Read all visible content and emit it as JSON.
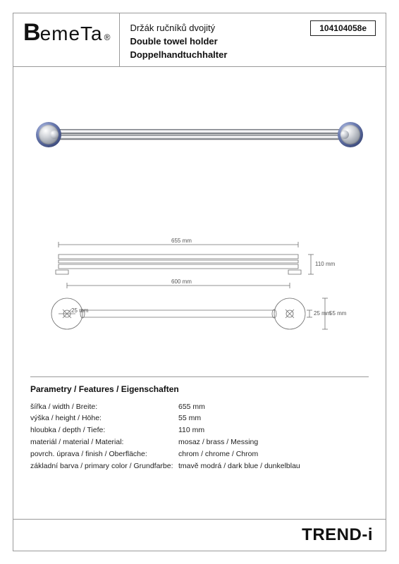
{
  "header": {
    "logo_b": "B",
    "logo_rest": "emeTa",
    "logo_reg": "®",
    "title_cs": "Držák ručníků dvojitý",
    "title_en": "Double towel holder",
    "title_de": "Doppelhandtuchhalter",
    "sku": "104104058e"
  },
  "render": {
    "accent_color": "#5d6da8",
    "chrome_light": "#f3f4f6",
    "chrome_dark": "#6a7079"
  },
  "drawing": {
    "dim_total_width": "655 mm",
    "dim_inner_width": "600 mm",
    "dim_height_side": "110 mm",
    "dim_mount_inner": "25 mm",
    "dim_mount_diameter": "55 mm",
    "dim_bar_gap": "25 mm",
    "stroke_color": "#6f6f6f",
    "stroke_width": 0.8
  },
  "features": {
    "heading": "Parametry / Features / Eigenschaften",
    "rows": [
      {
        "label": "šířka / width / Breite:",
        "value": "655 mm"
      },
      {
        "label": "výška / height / Höhe:",
        "value": "55 mm"
      },
      {
        "label": "hloubka / depth / Tiefe:",
        "value": "110 mm"
      },
      {
        "label": "materiál / material / Material:",
        "value": "mosaz / brass / Messing"
      },
      {
        "label": "povrch. úprava / finish / Oberfläche:",
        "value": "chrom / chrome / Chrom"
      },
      {
        "label": "základní barva / primary color / Grundfarbe:",
        "value": "tmavě modrá / dark blue / dunkelblau"
      }
    ]
  },
  "footer": {
    "brand_line": "TREND-i"
  }
}
